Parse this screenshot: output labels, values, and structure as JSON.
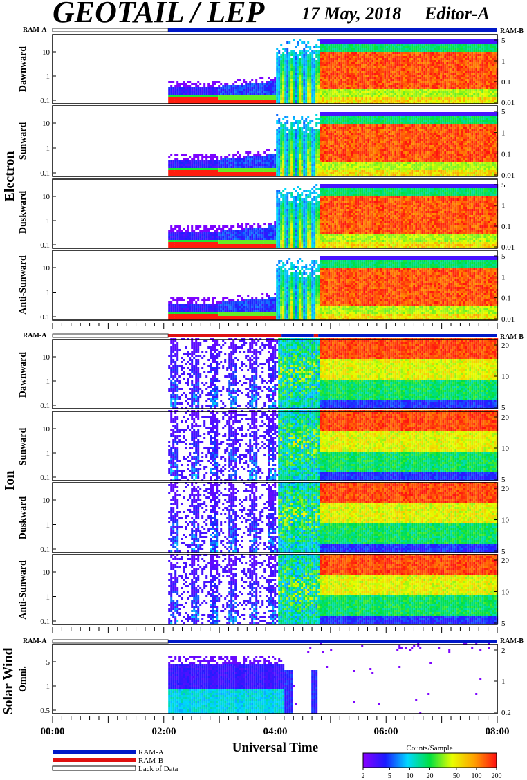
{
  "header": {
    "title": "GEOTAIL / LEP",
    "date": "17 May, 2018",
    "editor": "Editor-A"
  },
  "mode_labels": {
    "left": "RAM-A",
    "right": "RAM-B"
  },
  "sections": [
    {
      "name": "Electron",
      "panels": [
        "Dawnward",
        "Sunward",
        "Duskward",
        "Anti-Sunward"
      ],
      "left_ticks": [
        "10",
        "1",
        "0.1"
      ],
      "right_ticks": [
        "5",
        "1",
        "0.1",
        "0.01"
      ]
    },
    {
      "name": "Ion",
      "panels": [
        "Dawnward",
        "Sunward",
        "Duskward",
        "Anti-Sunward"
      ],
      "left_ticks": [
        "10",
        "1",
        "0.1"
      ],
      "right_ticks": [
        "20",
        "10",
        "5"
      ]
    },
    {
      "name": "Solar Wind",
      "panels": [
        "Omni."
      ],
      "left_ticks": [
        "5",
        "1",
        "0.5"
      ],
      "right_ticks": [
        "2",
        "1",
        "0.2"
      ]
    }
  ],
  "chart_data": {
    "type": "heatmap",
    "xlabel": "Universal Time",
    "x_ticks": [
      "00:00",
      "02:00",
      "04:00",
      "06:00",
      "08:00"
    ],
    "x_range_hours": [
      0,
      8
    ],
    "data_start_hour": 2.08,
    "legend": {
      "items": [
        {
          "label": "RAM-A",
          "color": "#0018c8"
        },
        {
          "label": "RAM-B",
          "color": "#e01010"
        },
        {
          "label": "Lack of Data",
          "color": "#ffffff"
        }
      ]
    },
    "colorbar": {
      "title": "Counts/Sample",
      "ticks": [
        "2",
        "5",
        "10",
        "20",
        "50",
        "100",
        "200"
      ],
      "colors": [
        "#8a00ff",
        "#1a1aff",
        "#00d8ff",
        "#00e040",
        "#e8ff00",
        "#ffa000",
        "#ff1010"
      ]
    },
    "mode_bars": [
      {
        "section": "Electron",
        "segments": [
          {
            "from": 0,
            "to": 2.08,
            "mode": "Lack of Data"
          },
          {
            "from": 2.08,
            "to": 8,
            "mode": "RAM-A"
          }
        ]
      },
      {
        "section": "Ion",
        "segments": [
          {
            "from": 0,
            "to": 2.08,
            "mode": "Lack of Data"
          },
          {
            "from": 2.08,
            "to": 4.12,
            "mode": "RAM-B"
          },
          {
            "from": 4.12,
            "to": 4.7,
            "mode": "RAM-A"
          },
          {
            "from": 4.7,
            "to": 4.78,
            "mode": "RAM-B"
          },
          {
            "from": 4.78,
            "to": 8,
            "mode": "RAM-A"
          }
        ]
      },
      {
        "section": "Solar Wind",
        "segments": [
          {
            "from": 0,
            "to": 2.08,
            "mode": "Lack of Data"
          },
          {
            "from": 2.08,
            "to": 8,
            "mode": "RAM-A"
          }
        ]
      }
    ]
  }
}
